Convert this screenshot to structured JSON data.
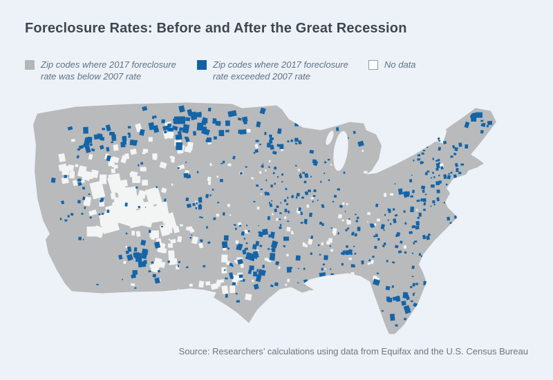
{
  "page": {
    "background": "#edf2f8"
  },
  "title": "Foreclosure Rates: Before and After the Great Recession",
  "legend": {
    "items": [
      {
        "id": "below",
        "swatch_color": "#b5b6b8",
        "lines": [
          "Zip codes where 2017 foreclosure",
          "rate was below 2007 rate"
        ]
      },
      {
        "id": "exceeded",
        "swatch_color": "#1161a5",
        "lines": [
          "Zip codes where 2017 foreclosure",
          "rate exceeded 2007 rate"
        ]
      },
      {
        "id": "nodata",
        "swatch_color": "#ffffff",
        "swatch_border": "#8f9aa4",
        "lines": [
          "No data"
        ]
      }
    ]
  },
  "map": {
    "land_color": "#b9babb",
    "exceeded_color": "#1464a8",
    "nodata_color": "#f3f4f4"
  },
  "source_note": "Source: Researchers’ calculations using data from Equifax and the U.S. Census Bureau"
}
